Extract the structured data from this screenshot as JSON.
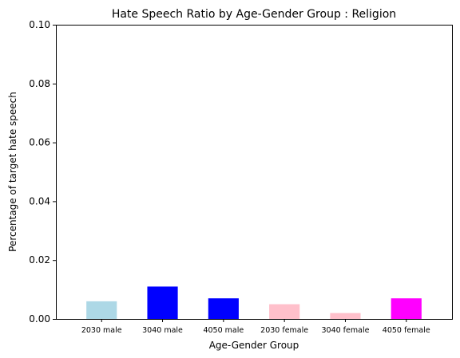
{
  "chart_data": {
    "type": "bar",
    "title": "Hate Speech Ratio by Age-Gender Group : Religion",
    "xlabel": "Age-Gender Group",
    "ylabel": "Percentage of target hate speech",
    "categories": [
      "2030 male",
      "3040 male",
      "4050 male",
      "2030 female",
      "3040 female",
      "4050 female"
    ],
    "values": [
      0.006,
      0.011,
      0.007,
      0.005,
      0.002,
      0.007
    ],
    "colors": [
      "#add8e6",
      "#0000ff",
      "#0000ff",
      "#ffc0cb",
      "#ffc0cb",
      "#ff00ff"
    ],
    "ylim": [
      0,
      0.1
    ],
    "yticks": [
      "0.00",
      "0.02",
      "0.04",
      "0.06",
      "0.08",
      "0.10"
    ],
    "grid": false,
    "legend": false
  }
}
